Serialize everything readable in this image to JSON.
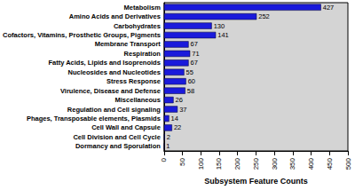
{
  "chart_data": {
    "type": "bar",
    "orientation": "horizontal",
    "x_label": "Subsystem Feature Counts",
    "categories": [
      "Metabolism",
      "Amino Acids and Derivatives",
      "Carbohydrates",
      "Cofactors, Vitamins, Prosthetic Groups, Pigments",
      "Membrane Transport",
      "Respiration",
      "Fatty Acids, Lipids and Isoprenoids",
      "Nucleosides and Nucleotides",
      "Stress Response",
      "Virulence, Disease and Defense",
      "Miscellaneous",
      "Regulation and Cell signaling",
      "Phages, Transposable elements, Plasmids",
      "Cell Wall and Capsule",
      "Cell Division and Cell Cycle",
      "Dormancy and Sporulation"
    ],
    "values": [
      427,
      252,
      130,
      141,
      67,
      71,
      67,
      55,
      60,
      58,
      26,
      37,
      14,
      22,
      2,
      1
    ],
    "color": "#1a1adb",
    "xlim": [
      0,
      500
    ],
    "xticks": [
      0,
      50,
      100,
      150,
      200,
      250,
      300,
      350,
      400,
      450,
      500
    ],
    "grid": false,
    "data_labels": true
  }
}
